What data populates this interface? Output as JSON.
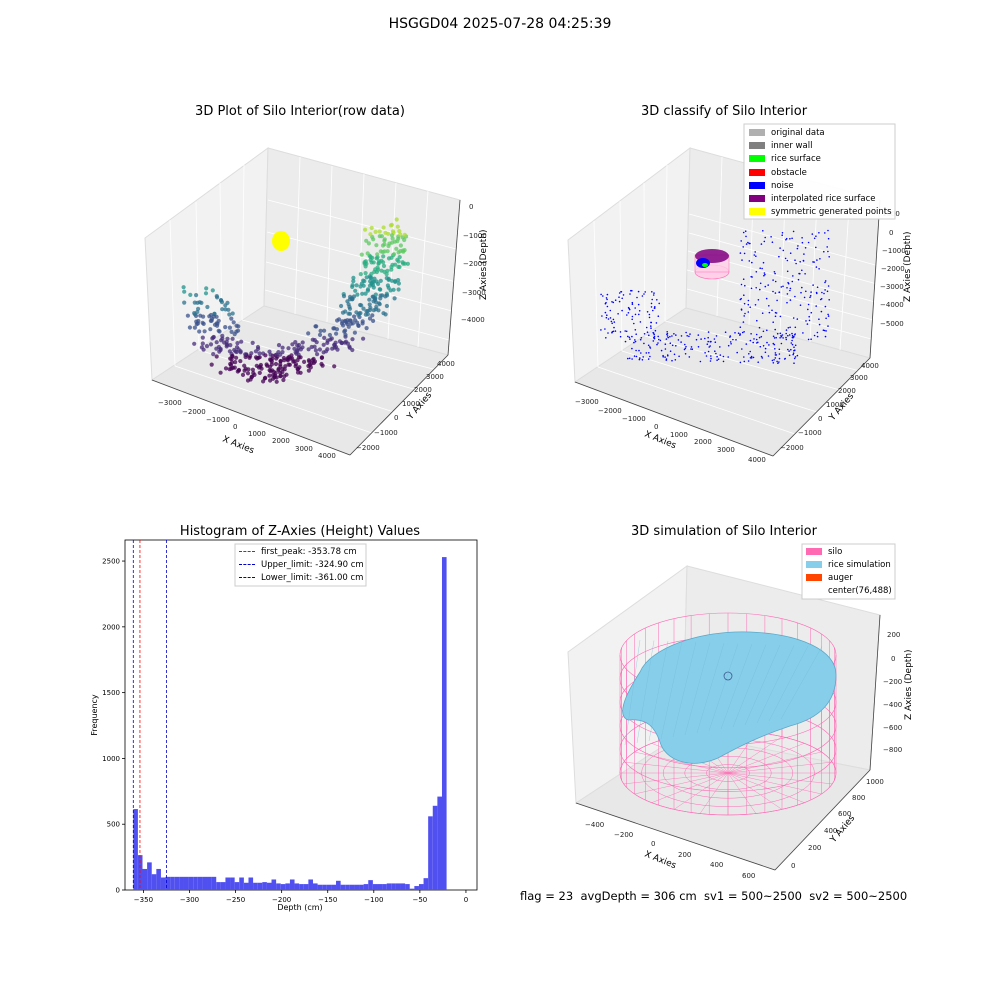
{
  "suptitle": "HSGGD04 2025-07-28 04:25:39",
  "footer": "flag = 23  avgDepth = 306 cm  sv1 = 500~2500  sv2 = 500~2500",
  "colors": {
    "silo": "#ff69b4",
    "rice_simulation": "#87ceeb",
    "auger": "#ff4500",
    "original_data": "#b0b0b0",
    "inner_wall": "#808080",
    "rice_surface": "#00ff00",
    "obstacle": "#ff0000",
    "noise": "#0000ff",
    "interpolated_rice_surface": "#800080",
    "symmetric_generated_points": "#ffff00",
    "histogram_bar": "#5050f0",
    "first_peak_line": "#ff0000",
    "limit_lines": "#0000cc"
  },
  "panels": {
    "p1": {
      "title": "3D Plot of Silo Interior(row data)",
      "xlabel": "X Axies",
      "ylabel": "Y Axies",
      "zlabel": "Z Axies (Depth)",
      "xticks": [
        "−3000",
        "−2000",
        "−1000",
        "0",
        "1000",
        "2000",
        "3000",
        "4000"
      ],
      "yticks": [
        "−2000",
        "−1000",
        "0",
        "1000",
        "2000",
        "3000",
        "4000"
      ],
      "zticks": [
        "0",
        "−1000",
        "−2000",
        "−3000",
        "−4000"
      ]
    },
    "p2": {
      "title": "3D classify of Silo Interior",
      "xlabel": "X Axies",
      "ylabel": "Y Axies",
      "zlabel": "Z Axies (Depth)",
      "xticks": [
        "−3000",
        "−2000",
        "−1000",
        "0",
        "1000",
        "2000",
        "3000",
        "4000"
      ],
      "yticks": [
        "−2000",
        "−1000",
        "0",
        "1000",
        "2000",
        "3000",
        "4000"
      ],
      "zticks": [
        "1000",
        "0",
        "−1000",
        "−2000",
        "−3000",
        "−4000",
        "−5000"
      ],
      "legend": [
        {
          "label": "original data",
          "color": "#b0b0b0"
        },
        {
          "label": "inner wall",
          "color": "#808080"
        },
        {
          "label": "rice surface",
          "color": "#00ff00"
        },
        {
          "label": "obstacle",
          "color": "#ff0000"
        },
        {
          "label": "noise",
          "color": "#0000ff"
        },
        {
          "label": "interpolated rice surface",
          "color": "#800080"
        },
        {
          "label": "symmetric generated points",
          "color": "#ffff00"
        }
      ]
    },
    "p4": {
      "title": "3D simulation of Silo Interior",
      "xlabel": "X Axies",
      "ylabel": "Y Axies",
      "zlabel": "Z Axies (Depth)",
      "xticks": [
        "−400",
        "−200",
        "0",
        "200",
        "400",
        "600"
      ],
      "yticks": [
        "0",
        "200",
        "400",
        "600",
        "800",
        "1000"
      ],
      "zticks": [
        "200",
        "0",
        "−200",
        "−400",
        "−600",
        "−800"
      ],
      "legend": [
        {
          "label": "silo",
          "color": "#ff69b4"
        },
        {
          "label": "rice simulation",
          "color": "#87ceeb"
        },
        {
          "label": "auger",
          "color": "#ff4500"
        },
        {
          "label": "center(76,488)",
          "color": ""
        }
      ]
    }
  },
  "chart_data": [
    {
      "type": "scatter",
      "title": "3D Plot of Silo Interior(row data)",
      "xlabel": "X Axies",
      "ylabel": "Y Axies",
      "zlabel": "Z Axies (Depth)",
      "xlim": [
        -3500,
        4500
      ],
      "ylim": [
        -2500,
        4500
      ],
      "zlim": [
        -4500,
        300
      ],
      "colormap": "viridis (by depth)"
    },
    {
      "type": "scatter",
      "title": "3D classify of Silo Interior",
      "xlabel": "X Axies",
      "ylabel": "Y Axies",
      "zlabel": "Z Axies (Depth)",
      "xlim": [
        -3500,
        4500
      ],
      "ylim": [
        -2500,
        4500
      ],
      "zlim": [
        -5500,
        1000
      ]
    },
    {
      "type": "bar",
      "title": "Histogram of Z-Axies (Height) Values",
      "xlabel": "Depth (cm)",
      "ylabel": "Frequency",
      "xlim": [
        -370,
        12
      ],
      "ylim": [
        0,
        2660
      ],
      "xticks": [
        -350,
        -300,
        -250,
        -200,
        -150,
        -100,
        -50,
        0
      ],
      "yticks": [
        0,
        500,
        1000,
        1500,
        2000,
        2500
      ],
      "bin_width": 5,
      "bins": [
        {
          "x0": -361,
          "count": 615
        },
        {
          "x0": -356,
          "count": 265
        },
        {
          "x0": -351,
          "count": 160
        },
        {
          "x0": -346,
          "count": 210
        },
        {
          "x0": -341,
          "count": 120
        },
        {
          "x0": -336,
          "count": 160
        },
        {
          "x0": -331,
          "count": 95
        },
        {
          "x0": -326,
          "count": 100
        },
        {
          "x0": -321,
          "count": 100
        },
        {
          "x0": -316,
          "count": 100
        },
        {
          "x0": -311,
          "count": 100
        },
        {
          "x0": -306,
          "count": 100
        },
        {
          "x0": -301,
          "count": 100
        },
        {
          "x0": -296,
          "count": 100
        },
        {
          "x0": -291,
          "count": 100
        },
        {
          "x0": -286,
          "count": 100
        },
        {
          "x0": -281,
          "count": 100
        },
        {
          "x0": -276,
          "count": 100
        },
        {
          "x0": -271,
          "count": 60
        },
        {
          "x0": -266,
          "count": 60
        },
        {
          "x0": -261,
          "count": 95
        },
        {
          "x0": -256,
          "count": 95
        },
        {
          "x0": -251,
          "count": 60
        },
        {
          "x0": -246,
          "count": 95
        },
        {
          "x0": -241,
          "count": 55
        },
        {
          "x0": -236,
          "count": 95
        },
        {
          "x0": -231,
          "count": 55
        },
        {
          "x0": -226,
          "count": 55
        },
        {
          "x0": -221,
          "count": 60
        },
        {
          "x0": -216,
          "count": 55
        },
        {
          "x0": -211,
          "count": 80
        },
        {
          "x0": -206,
          "count": 50
        },
        {
          "x0": -201,
          "count": 45
        },
        {
          "x0": -196,
          "count": 50
        },
        {
          "x0": -191,
          "count": 80
        },
        {
          "x0": -186,
          "count": 50
        },
        {
          "x0": -181,
          "count": 45
        },
        {
          "x0": -176,
          "count": 45
        },
        {
          "x0": -171,
          "count": 80
        },
        {
          "x0": -166,
          "count": 50
        },
        {
          "x0": -161,
          "count": 40
        },
        {
          "x0": -156,
          "count": 40
        },
        {
          "x0": -151,
          "count": 40
        },
        {
          "x0": -146,
          "count": 40
        },
        {
          "x0": -141,
          "count": 70
        },
        {
          "x0": -136,
          "count": 40
        },
        {
          "x0": -131,
          "count": 40
        },
        {
          "x0": -126,
          "count": 40
        },
        {
          "x0": -121,
          "count": 40
        },
        {
          "x0": -116,
          "count": 40
        },
        {
          "x0": -111,
          "count": 45
        },
        {
          "x0": -106,
          "count": 75
        },
        {
          "x0": -101,
          "count": 45
        },
        {
          "x0": -96,
          "count": 45
        },
        {
          "x0": -91,
          "count": 45
        },
        {
          "x0": -86,
          "count": 50
        },
        {
          "x0": -81,
          "count": 50
        },
        {
          "x0": -76,
          "count": 50
        },
        {
          "x0": -71,
          "count": 50
        },
        {
          "x0": -66,
          "count": 45
        },
        {
          "x0": -61,
          "count": 10
        },
        {
          "x0": -56,
          "count": 30
        },
        {
          "x0": -51,
          "count": 45
        },
        {
          "x0": -46,
          "count": 90
        },
        {
          "x0": -41,
          "count": 560
        },
        {
          "x0": -36,
          "count": 640
        },
        {
          "x0": -31,
          "count": 710
        },
        {
          "x0": -26,
          "count": 2530
        }
      ],
      "vlines": [
        {
          "x": -353.78,
          "label": "first_peak: -353.78 cm",
          "color": "#ff0000"
        },
        {
          "x": -324.9,
          "label": "Upper_limit: -324.90 cm",
          "color": "#0000cc"
        },
        {
          "x": -361.0,
          "label": "Lower_limit: -361.00 cm",
          "color": "#0000cc"
        }
      ]
    },
    {
      "type": "surface",
      "title": "3D simulation of Silo Interior",
      "xlabel": "X Axies",
      "ylabel": "Y Axies",
      "zlabel": "Z Axies (Depth)",
      "xlim": [
        -450,
        650
      ],
      "ylim": [
        -50,
        1050
      ],
      "zlim": [
        -900,
        300
      ],
      "center": [
        76,
        488
      ]
    }
  ]
}
